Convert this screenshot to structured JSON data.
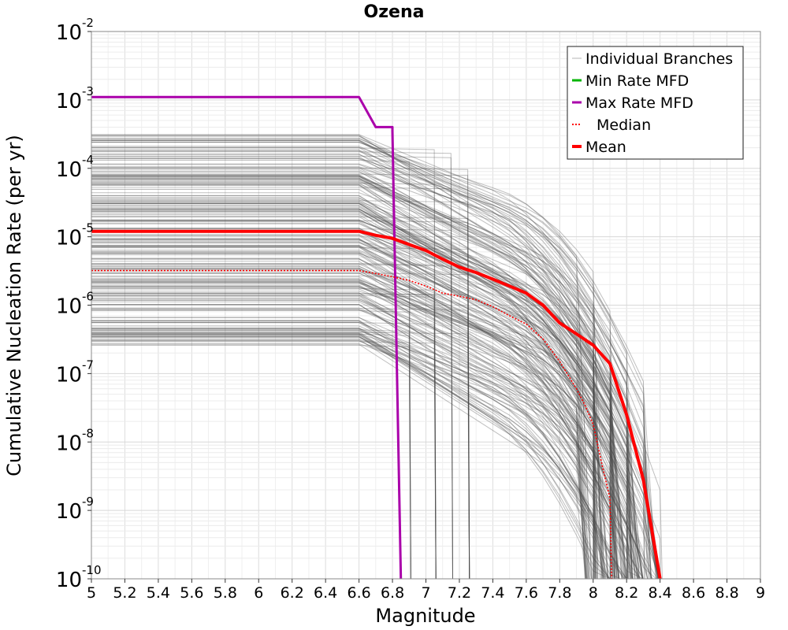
{
  "chart_data": {
    "type": "line",
    "title": "Ozena",
    "xlabel": "Magnitude",
    "ylabel": "Cumulative Nucleation Rate (per yr)",
    "xlim": [
      5,
      9
    ],
    "ylim": [
      1e-10,
      0.01
    ],
    "yscale": "log",
    "grid": true,
    "legend_position": "top-right",
    "x_ticks": [
      "5",
      "5.2",
      "5.4",
      "5.6",
      "5.8",
      "6",
      "6.2",
      "6.4",
      "6.6",
      "6.8",
      "7",
      "7.2",
      "7.4",
      "7.6",
      "7.8",
      "8",
      "8.2",
      "8.4",
      "8.6",
      "8.8",
      "9"
    ],
    "y_ticks": [
      {
        "base": "10",
        "exp": "-10"
      },
      {
        "base": "10",
        "exp": "-9"
      },
      {
        "base": "10",
        "exp": "-8"
      },
      {
        "base": "10",
        "exp": "-7"
      },
      {
        "base": "10",
        "exp": "-6"
      },
      {
        "base": "10",
        "exp": "-5"
      },
      {
        "base": "10",
        "exp": "-4"
      },
      {
        "base": "10",
        "exp": "-3"
      },
      {
        "base": "10",
        "exp": "-2"
      }
    ],
    "legend": [
      {
        "label": "Individual Branches",
        "color": "#b4b4b4",
        "style": "thin"
      },
      {
        "label": "Min Rate MFD",
        "color": "#00b400",
        "style": "solid"
      },
      {
        "label": "Max Rate MFD",
        "color": "#aa00aa",
        "style": "solid"
      },
      {
        "label": "Median",
        "color": "#ff0000",
        "style": "dotted"
      },
      {
        "label": "Mean",
        "color": "#ff0000",
        "style": "thick"
      }
    ],
    "series": [
      {
        "name": "Max Rate MFD",
        "color": "#aa00aa",
        "points": [
          [
            5,
            0.0011
          ],
          [
            6.6,
            0.0011
          ],
          [
            6.7,
            0.0004
          ],
          [
            6.8,
            0.0004
          ],
          [
            6.8,
            0.00035
          ],
          [
            6.85,
            1e-10
          ]
        ]
      },
      {
        "name": "Median",
        "color": "#ff0000",
        "points": [
          [
            5,
            3.2e-06
          ],
          [
            6.6,
            3.2e-06
          ],
          [
            6.7,
            2.9e-06
          ],
          [
            6.8,
            2.6e-06
          ],
          [
            6.9,
            2.3e-06
          ],
          [
            7.0,
            1.9e-06
          ],
          [
            7.1,
            1.5e-06
          ],
          [
            7.2,
            1.35e-06
          ],
          [
            7.3,
            1.2e-06
          ],
          [
            7.4,
            9.5e-07
          ],
          [
            7.5,
            7e-07
          ],
          [
            7.6,
            5.3e-07
          ],
          [
            7.7,
            3.2e-07
          ],
          [
            7.8,
            1.5e-07
          ],
          [
            7.9,
            6e-08
          ],
          [
            7.95,
            3.5e-08
          ],
          [
            8.0,
            1.8e-08
          ],
          [
            8.05,
            5e-09
          ],
          [
            8.1,
            1.5e-09
          ],
          [
            8.11,
            1e-10
          ]
        ]
      },
      {
        "name": "Mean",
        "color": "#ff0000",
        "points": [
          [
            5,
            1.2e-05
          ],
          [
            6.6,
            1.2e-05
          ],
          [
            6.7,
            1.05e-05
          ],
          [
            6.8,
            9.5e-06
          ],
          [
            6.9,
            7.7e-06
          ],
          [
            7.0,
            6.3e-06
          ],
          [
            7.1,
            4.7e-06
          ],
          [
            7.2,
            3.6e-06
          ],
          [
            7.3,
            3e-06
          ],
          [
            7.4,
            2.4e-06
          ],
          [
            7.5,
            1.9e-06
          ],
          [
            7.6,
            1.5e-06
          ],
          [
            7.7,
            1e-06
          ],
          [
            7.8,
            5.5e-07
          ],
          [
            7.9,
            3.8e-07
          ],
          [
            8.0,
            2.6e-07
          ],
          [
            8.1,
            1.4e-07
          ],
          [
            8.2,
            2.5e-08
          ],
          [
            8.3,
            2.8e-09
          ],
          [
            8.4,
            1e-10
          ]
        ]
      }
    ]
  }
}
